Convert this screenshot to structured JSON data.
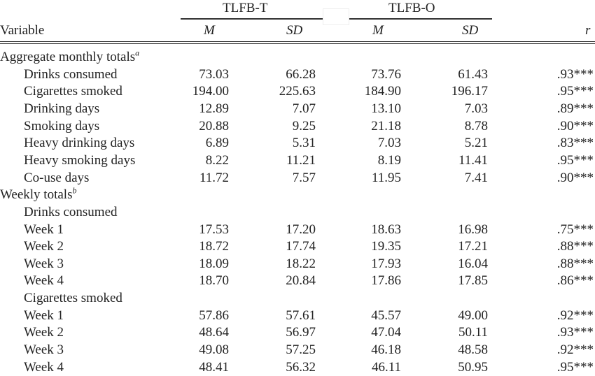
{
  "header": {
    "group_tlfb_t": "TLFB-T",
    "group_tlfb_o": "TLFB-O",
    "variable": "Variable",
    "m1": "M",
    "sd1": "SD",
    "m2": "M",
    "sd2": "SD",
    "r": "r"
  },
  "sections": [
    {
      "label": "Aggregate monthly totals",
      "sup": "a"
    },
    {
      "label": "Weekly totals",
      "sup": "b"
    }
  ],
  "subheaders": [
    "Drinks consumed",
    "Cigarettes smoked"
  ],
  "aggregate_rows": [
    {
      "variable": "Drinks consumed",
      "m_t": "73.03",
      "sd_t": "66.28",
      "m_o": "73.76",
      "sd_o": "61.43",
      "r": ".93***"
    },
    {
      "variable": "Cigarettes smoked",
      "m_t": "194.00",
      "sd_t": "225.63",
      "m_o": "184.90",
      "sd_o": "196.17",
      "r": ".95***"
    },
    {
      "variable": "Drinking days",
      "m_t": "12.89",
      "sd_t": "7.07",
      "m_o": "13.10",
      "sd_o": "7.03",
      "r": ".89***"
    },
    {
      "variable": "Smoking days",
      "m_t": "20.88",
      "sd_t": "9.25",
      "m_o": "21.18",
      "sd_o": "8.78",
      "r": ".90***"
    },
    {
      "variable": "Heavy drinking days",
      "m_t": "6.89",
      "sd_t": "5.31",
      "m_o": "7.03",
      "sd_o": "5.21",
      "r": ".83***"
    },
    {
      "variable": "Heavy smoking days",
      "m_t": "8.22",
      "sd_t": "11.21",
      "m_o": "8.19",
      "sd_o": "11.41",
      "r": ".95***"
    },
    {
      "variable": "Co-use days",
      "m_t": "11.72",
      "sd_t": "7.57",
      "m_o": "11.95",
      "sd_o": "7.41",
      "r": ".90***"
    }
  ],
  "weekly_drinks": [
    {
      "variable": "Week 1",
      "m_t": "17.53",
      "sd_t": "17.20",
      "m_o": "18.63",
      "sd_o": "16.98",
      "r": ".75***"
    },
    {
      "variable": "Week 2",
      "m_t": "18.72",
      "sd_t": "17.74",
      "m_o": "19.35",
      "sd_o": "17.21",
      "r": ".88***"
    },
    {
      "variable": "Week 3",
      "m_t": "18.09",
      "sd_t": "18.22",
      "m_o": "17.93",
      "sd_o": "16.04",
      "r": ".88***"
    },
    {
      "variable": "Week 4",
      "m_t": "18.70",
      "sd_t": "20.84",
      "m_o": "17.86",
      "sd_o": "17.85",
      "r": ".86***"
    }
  ],
  "weekly_cigarettes": [
    {
      "variable": "Week 1",
      "m_t": "57.86",
      "sd_t": "57.61",
      "m_o": "45.57",
      "sd_o": "49.00",
      "r": ".92***"
    },
    {
      "variable": "Week 2",
      "m_t": "48.64",
      "sd_t": "56.97",
      "m_o": "47.04",
      "sd_o": "50.11",
      "r": ".93***"
    },
    {
      "variable": "Week 3",
      "m_t": "49.08",
      "sd_t": "57.25",
      "m_o": "46.18",
      "sd_o": "48.58",
      "r": ".92***"
    },
    {
      "variable": "Week 4",
      "m_t": "48.41",
      "sd_t": "56.32",
      "m_o": "46.11",
      "sd_o": "50.95",
      "r": ".95***"
    }
  ]
}
